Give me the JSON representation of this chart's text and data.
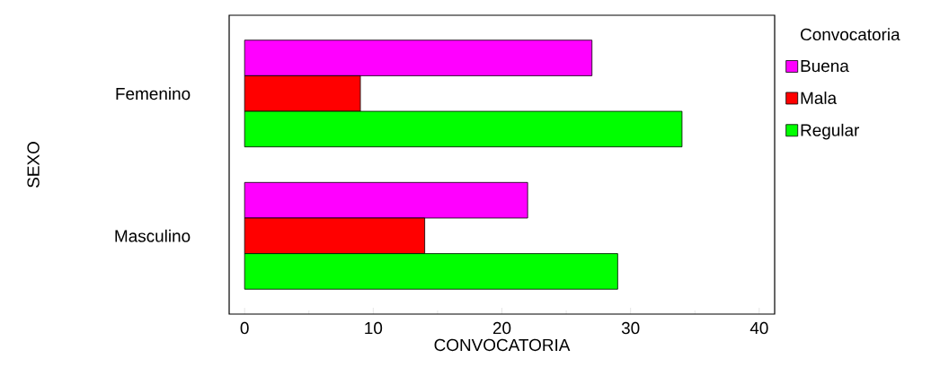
{
  "chart_data": {
    "type": "bar",
    "orientation": "horizontal",
    "xlabel": "CONVOCATORIA",
    "ylabel": "SEXO",
    "legend_title": "Convocatoria",
    "legend": "right",
    "categories": [
      "Femenino",
      "Masculino"
    ],
    "series": [
      {
        "name": "Buena",
        "color": "#ff00ff",
        "values": [
          27,
          22
        ]
      },
      {
        "name": "Mala",
        "color": "#ff0000",
        "values": [
          9,
          14
        ]
      },
      {
        "name": "Regular",
        "color": "#00ff00",
        "values": [
          34,
          29
        ]
      }
    ],
    "xlim": [
      -1.2,
      41.2
    ],
    "xticks": [
      0,
      10,
      20,
      30,
      40
    ],
    "grid": false
  }
}
